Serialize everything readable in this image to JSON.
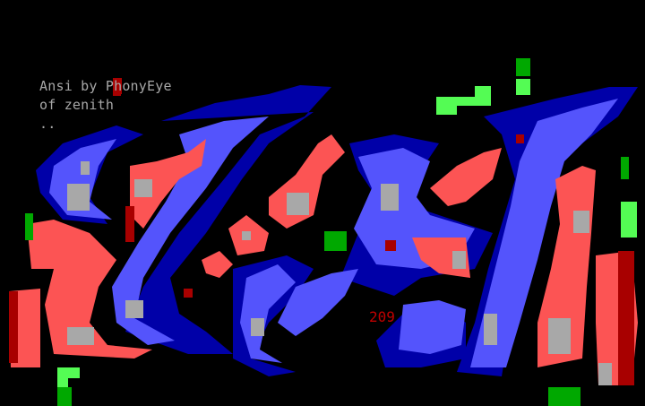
{
  "credits": {
    "line1_pre": "Ansi by P",
    "line1_hl": "h",
    "line1_post": "onyEye",
    "line2": "of zenith",
    "line3": ".."
  },
  "number": "209",
  "colors": {
    "background": "#000000",
    "dark_blue": "#0000a8",
    "light_blue": "#5454fc",
    "light_red": "#fc5454",
    "dark_red": "#a80000",
    "gray": "#a8a8a8",
    "light_green": "#54fc54",
    "dark_green": "#00a800"
  }
}
